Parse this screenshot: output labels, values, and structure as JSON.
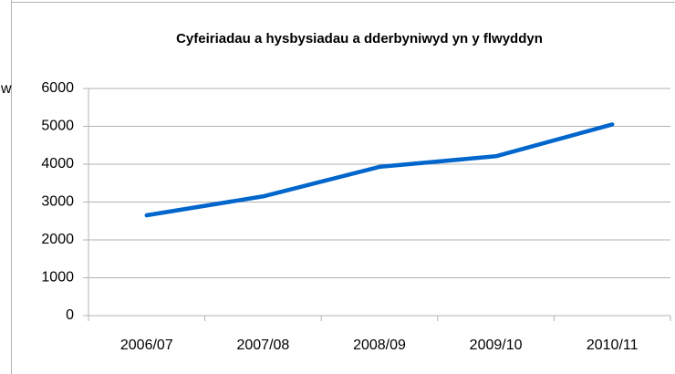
{
  "chart_data": {
    "type": "line",
    "title": "Cyfeiriadau a hysbysiadau a dderbyniwyd yn y flwyddyn",
    "annotations": [
      "w"
    ],
    "categories": [
      "2006/07",
      "2007/08",
      "2008/09",
      "2009/10",
      "2010/11"
    ],
    "series": [
      {
        "name": null,
        "color": "#0066cc",
        "values": [
          2650,
          3150,
          3930,
          4210,
          5050
        ]
      }
    ],
    "ylim": [
      0,
      6000
    ],
    "yticks": [
      0,
      1000,
      2000,
      3000,
      4000,
      5000,
      6000
    ],
    "grid": true
  }
}
